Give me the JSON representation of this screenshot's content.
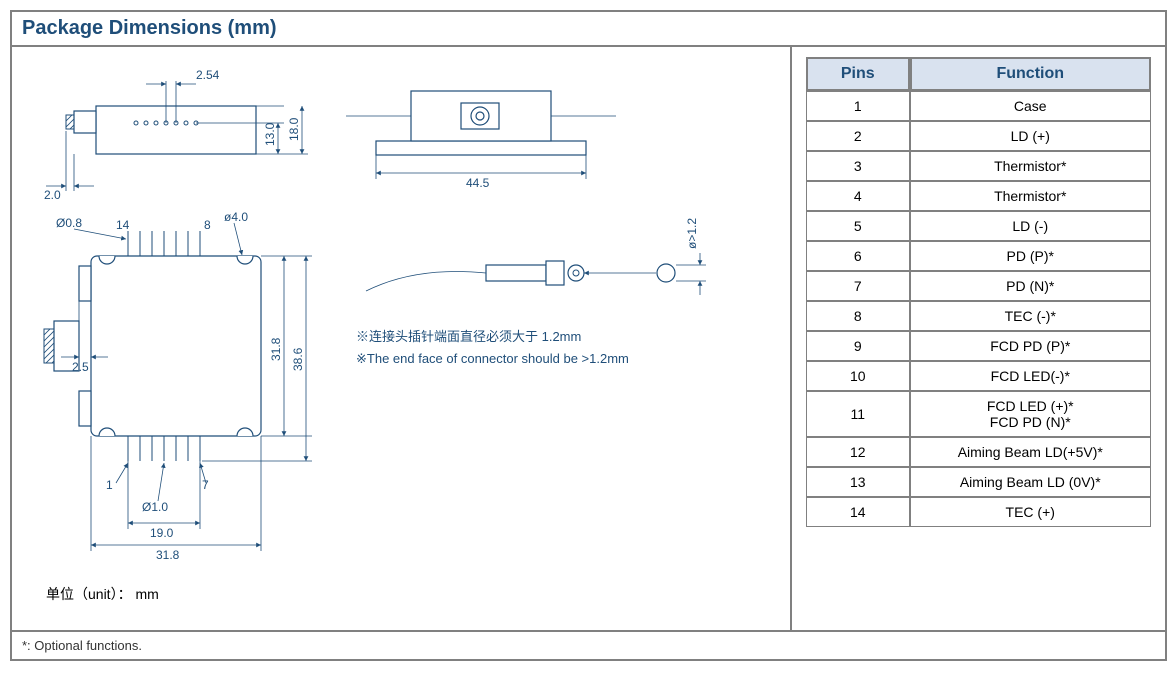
{
  "title": "Package Dimensions (mm)",
  "footnote": "*: Optional functions.",
  "table": {
    "headers": [
      "Pins",
      "Function"
    ],
    "rows": [
      {
        "pin": "1",
        "func": "Case"
      },
      {
        "pin": "2",
        "func": "LD (+)"
      },
      {
        "pin": "3",
        "func": "Thermistor*"
      },
      {
        "pin": "4",
        "func": "Thermistor*"
      },
      {
        "pin": "5",
        "func": "LD (-)"
      },
      {
        "pin": "6",
        "func": "PD (P)*"
      },
      {
        "pin": "7",
        "func": "PD (N)*"
      },
      {
        "pin": "8",
        "func": "TEC (-)*"
      },
      {
        "pin": "9",
        "func": "FCD PD (P)*"
      },
      {
        "pin": "10",
        "func": "FCD LED(-)*"
      },
      {
        "pin": "11",
        "func": "FCD LED (+)*\nFCD PD (N)*"
      },
      {
        "pin": "12",
        "func": "Aiming Beam LD(+5V)*"
      },
      {
        "pin": "13",
        "func": "Aiming Beam LD (0V)*"
      },
      {
        "pin": "14",
        "func": "TEC (+)"
      }
    ]
  },
  "dims": {
    "pitch": "2.54",
    "h1": "13.0",
    "h2": "18.0",
    "side": "2.0",
    "base": "44.5",
    "d_hole": "ø4.0",
    "d_pin": "Ø0.8",
    "pin14": "14",
    "pin8": "8",
    "ledge": "2.5",
    "body_h": "31.8",
    "tot_h": "38.6",
    "pin1": "1",
    "pin7": "7",
    "d_row": "Ø1.0",
    "row_w": "19.0",
    "tot_w": "31.8",
    "conn": "ø>1.2",
    "note_cn": "※连接头插针端面直径必须大于 1.2mm",
    "note_en": "※The end face of connector should be >1.2mm",
    "unit": "单位（unit）： mm"
  },
  "colors": {
    "line": "#1f4e79",
    "header_bg": "#d9e2ef",
    "border": "#808080"
  }
}
